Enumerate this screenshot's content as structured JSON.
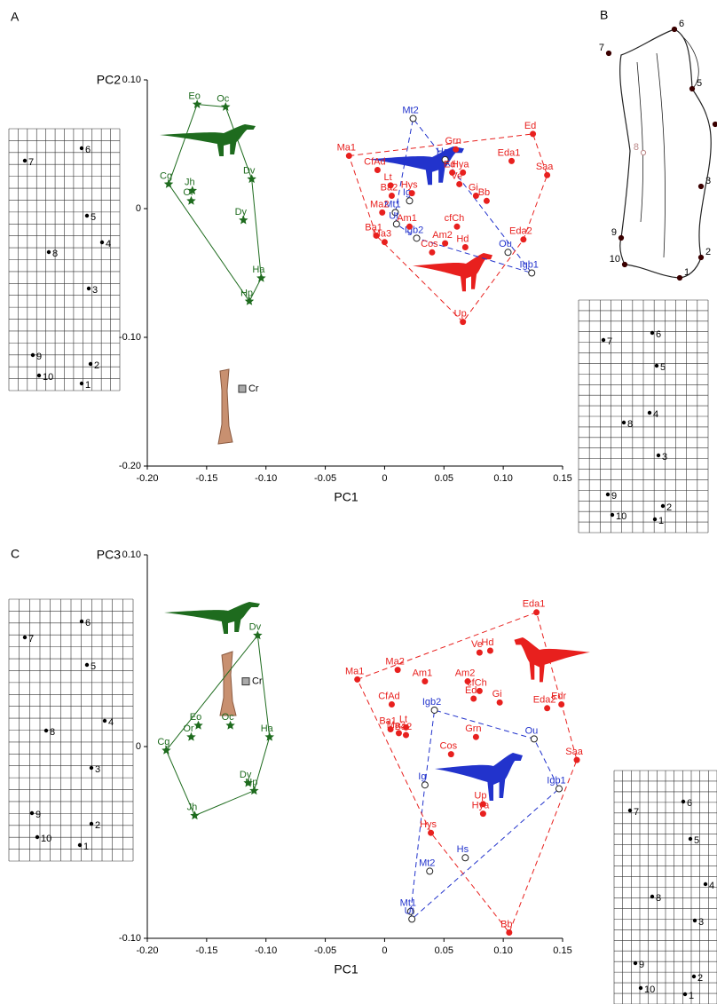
{
  "panel_labels": [
    "A",
    "B",
    "C"
  ],
  "outline": {
    "landmarks": [
      "1",
      "2",
      "3",
      "4",
      "5",
      "6",
      "7",
      "8",
      "9",
      "10"
    ]
  },
  "deformation_grids": [
    {
      "landmarks": [
        "1",
        "2",
        "3",
        "4",
        "5",
        "6",
        "7",
        "8",
        "9",
        "10"
      ]
    },
    {
      "landmarks": [
        "1",
        "2",
        "3",
        "4",
        "5",
        "6",
        "7",
        "8",
        "9",
        "10"
      ]
    },
    {
      "landmarks": [
        "1",
        "2",
        "3",
        "4",
        "5",
        "6",
        "7",
        "8",
        "9",
        "10"
      ]
    },
    {
      "landmarks": [
        "1",
        "2",
        "3",
        "4",
        "5",
        "6",
        "7",
        "8",
        "9",
        "10"
      ]
    }
  ],
  "chart_data": [
    {
      "type": "scatter",
      "x_label": "PC1",
      "y_label": "PC2",
      "xlim": [
        -0.2,
        0.15
      ],
      "xticks": [
        {
          "value": -0.2,
          "label": "-0.20"
        },
        -0.15,
        {
          "value": -0.1,
          "label": "-0.10"
        },
        -0.05,
        0,
        0.05,
        {
          "value": 0.1,
          "label": "0.10"
        },
        0.15
      ],
      "ylim": [
        -0.2,
        0.1
      ],
      "yticks": [
        {
          "value": -0.2,
          "label": "-0.20"
        },
        {
          "value": -0.1,
          "label": "-0.10"
        },
        0,
        {
          "value": 0.1,
          "label": "0.10"
        }
      ],
      "series": [
        {
          "color": "#1e6b1e",
          "marker": "star",
          "hull": "solid",
          "labels": [
            "Eo",
            "Oc",
            "Cg",
            "Jh",
            "Or",
            "Dv",
            "Dy",
            "Ha",
            "Hp"
          ],
          "x": [
            -0.158,
            -0.134,
            -0.182,
            -0.162,
            -0.163,
            -0.112,
            -0.119,
            -0.104,
            -0.114
          ],
          "values": [
            0.081,
            0.079,
            0.019,
            0.014,
            0.006,
            0.023,
            -0.009,
            -0.054,
            -0.072
          ]
        },
        {
          "color": "#2233cc",
          "marker": "open-circle",
          "hull": "dashed",
          "labels": [
            "Mt2",
            "Hs",
            "Ig",
            "Mt1",
            "Ut",
            "Igb2",
            "Ou",
            "Igb1"
          ],
          "x": [
            0.024,
            0.051,
            0.021,
            0.009,
            0.01,
            0.027,
            0.104,
            0.124
          ],
          "values": [
            0.07,
            0.038,
            0.006,
            -0.003,
            -0.012,
            -0.023,
            -0.034,
            -0.05
          ]
        },
        {
          "color": "#e8201e",
          "marker": "circle",
          "hull": "dashed",
          "labels": [
            "Ma1",
            "CfAd",
            "Lt",
            "Ba2",
            "Ma2",
            "Ba1",
            "Ma3",
            "Hys",
            "Am1",
            "cfCh",
            "Am2",
            "Hd",
            "Cos",
            "Grn",
            "Ed",
            "Hya",
            "Ve",
            "Gi",
            "Bb",
            "Ed",
            "Eda1",
            "Saa",
            "Eda2",
            "Up"
          ],
          "x": [
            -0.03,
            -0.006,
            0.005,
            0.006,
            -0.002,
            -0.007,
            0.0,
            0.023,
            0.021,
            0.061,
            0.051,
            0.068,
            0.04,
            0.06,
            0.057,
            0.066,
            0.063,
            0.077,
            0.086,
            0.125,
            0.107,
            0.137,
            0.117,
            0.066
          ],
          "values": [
            0.041,
            0.03,
            0.018,
            0.01,
            -0.003,
            -0.021,
            -0.026,
            0.012,
            -0.014,
            -0.014,
            -0.027,
            -0.03,
            -0.034,
            0.046,
            0.028,
            0.028,
            0.019,
            0.01,
            0.006,
            0.058,
            0.037,
            0.026,
            -0.024,
            -0.088
          ]
        },
        {
          "color": "#aaaaaa",
          "marker": "square",
          "hull": "none",
          "labels": [
            "Cr"
          ],
          "x": [
            -0.12
          ],
          "values": [
            -0.14
          ]
        }
      ]
    },
    {
      "type": "scatter",
      "x_label": "PC1",
      "y_label": "PC3",
      "xlim": [
        -0.2,
        0.15
      ],
      "xticks": [
        {
          "value": -0.2,
          "label": "-0.20"
        },
        -0.15,
        {
          "value": -0.1,
          "label": "-0.10"
        },
        -0.05,
        0,
        0.05,
        {
          "value": 0.1,
          "label": "0.10"
        },
        0.15
      ],
      "ylim": [
        -0.1,
        0.1
      ],
      "yticks": [
        {
          "value": -0.1,
          "label": "-0.10"
        },
        0,
        {
          "value": 0.1,
          "label": "0.10"
        }
      ],
      "series": [
        {
          "color": "#1e6b1e",
          "marker": "star",
          "hull": "solid",
          "labels": [
            "Dv",
            "Eo",
            "Or",
            "Oc",
            "Cg",
            "Ha",
            "Dy",
            "Hp",
            "Jh"
          ],
          "x": [
            -0.107,
            -0.157,
            -0.163,
            -0.13,
            -0.184,
            -0.097,
            -0.115,
            -0.11,
            -0.16
          ],
          "values": [
            0.058,
            0.011,
            0.005,
            0.011,
            -0.002,
            0.005,
            -0.019,
            -0.023,
            -0.036
          ]
        },
        {
          "color": "#2233cc",
          "marker": "open-circle",
          "hull": "dashed",
          "labels": [
            "Igb2",
            "Ou",
            "Igb1",
            "Ig",
            "Hs",
            "Mt2",
            "Mt1",
            "Ut"
          ],
          "x": [
            0.042,
            0.126,
            0.147,
            0.034,
            0.068,
            0.038,
            0.022,
            0.023
          ],
          "values": [
            0.019,
            0.004,
            -0.022,
            -0.02,
            -0.058,
            -0.065,
            -0.086,
            -0.09
          ]
        },
        {
          "color": "#e8201e",
          "marker": "circle",
          "hull": "dashed",
          "labels": [
            "Eda1",
            "Ve",
            "Hd",
            "Ma1",
            "Ma2",
            "Am1",
            "Am2",
            "cfCh",
            "Ed",
            "Gi",
            "Eda2",
            "Edr",
            "CfAd",
            "Ba1",
            "Ma3",
            "Lt",
            "Ba2",
            "Grn",
            "Cos",
            "Saa",
            "Up",
            "Hya",
            "Hys",
            "Bb"
          ],
          "x": [
            0.128,
            0.08,
            0.089,
            -0.023,
            0.011,
            0.034,
            0.07,
            0.08,
            0.075,
            0.097,
            0.137,
            0.149,
            0.006,
            0.005,
            0.012,
            0.018,
            0.018,
            0.077,
            0.056,
            0.162,
            0.083,
            0.083,
            0.039,
            0.105
          ],
          "values": [
            0.07,
            0.049,
            0.05,
            0.035,
            0.04,
            0.034,
            0.034,
            0.029,
            0.025,
            0.023,
            0.02,
            0.022,
            0.022,
            0.009,
            0.007,
            0.01,
            0.006,
            0.005,
            -0.004,
            -0.007,
            -0.03,
            -0.035,
            -0.045,
            -0.097
          ]
        },
        {
          "color": "#aaaaaa",
          "marker": "square",
          "hull": "none",
          "labels": [
            "Cr"
          ],
          "x": [
            -0.117
          ],
          "values": [
            0.034
          ]
        }
      ]
    }
  ]
}
